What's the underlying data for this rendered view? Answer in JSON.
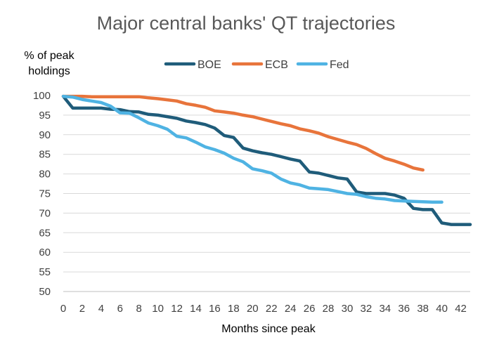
{
  "chart_data": {
    "type": "line",
    "title": "Major central banks' QT trajectories",
    "ylabel_line1": "% of peak",
    "ylabel_line2": "holdings",
    "xlabel": "Months since peak",
    "xlim": [
      0,
      43
    ],
    "ylim": [
      50,
      100
    ],
    "yticks": [
      50,
      55,
      60,
      65,
      70,
      75,
      80,
      85,
      90,
      95,
      100
    ],
    "xticks": [
      0,
      2,
      4,
      6,
      8,
      10,
      12,
      14,
      16,
      18,
      20,
      22,
      24,
      26,
      28,
      30,
      32,
      34,
      36,
      38,
      40,
      42
    ],
    "grid": "horizontal",
    "legend_position": "top",
    "series": [
      {
        "name": "BOE",
        "color": "#1f5c7a",
        "x": [
          0,
          1,
          2,
          3,
          4,
          5,
          6,
          7,
          8,
          9,
          10,
          11,
          12,
          13,
          14,
          15,
          16,
          17,
          18,
          19,
          20,
          21,
          22,
          23,
          24,
          25,
          26,
          27,
          28,
          29,
          30,
          31,
          32,
          33,
          34,
          35,
          36,
          37,
          38,
          39,
          40,
          41,
          42,
          43
        ],
        "y": [
          99.8,
          96.8,
          96.8,
          96.8,
          96.8,
          96.5,
          96.4,
          95.9,
          95.8,
          95.2,
          95.0,
          94.6,
          94.2,
          93.5,
          93.1,
          92.6,
          91.7,
          89.8,
          89.3,
          86.6,
          85.9,
          85.4,
          85.0,
          84.4,
          83.8,
          83.3,
          80.5,
          80.2,
          79.6,
          79.0,
          78.7,
          75.4,
          75.0,
          75.0,
          75.0,
          74.6,
          73.8,
          71.2,
          70.9,
          70.9,
          67.5,
          67.1,
          67.1,
          67.1
        ]
      },
      {
        "name": "ECB",
        "color": "#e8743b",
        "x": [
          0,
          1,
          2,
          3,
          4,
          5,
          6,
          7,
          8,
          9,
          10,
          11,
          12,
          13,
          14,
          15,
          16,
          17,
          18,
          19,
          20,
          21,
          22,
          23,
          24,
          25,
          26,
          27,
          28,
          29,
          30,
          31,
          32,
          33,
          34,
          35,
          36,
          37,
          38
        ],
        "y": [
          99.8,
          99.8,
          99.8,
          99.7,
          99.7,
          99.7,
          99.7,
          99.7,
          99.7,
          99.4,
          99.2,
          98.9,
          98.6,
          97.9,
          97.5,
          97.0,
          96.1,
          95.8,
          95.5,
          95.0,
          94.6,
          94.0,
          93.4,
          92.8,
          92.3,
          91.5,
          91.0,
          90.4,
          89.5,
          88.8,
          88.1,
          87.5,
          86.5,
          85.2,
          84.0,
          83.3,
          82.5,
          81.5,
          81.0
        ]
      },
      {
        "name": "Fed",
        "color": "#4fb3e3",
        "x": [
          0,
          1,
          2,
          3,
          4,
          5,
          6,
          7,
          8,
          9,
          10,
          11,
          12,
          13,
          14,
          15,
          16,
          17,
          18,
          19,
          20,
          21,
          22,
          23,
          24,
          25,
          26,
          27,
          28,
          29,
          30,
          31,
          32,
          33,
          34,
          35,
          36,
          37,
          38,
          39,
          40
        ],
        "y": [
          99.8,
          99.6,
          99.0,
          98.6,
          98.2,
          97.3,
          95.6,
          95.5,
          94.3,
          93.0,
          92.3,
          91.4,
          89.6,
          89.2,
          88.1,
          86.9,
          86.2,
          85.3,
          84.0,
          83.1,
          81.3,
          80.8,
          80.2,
          78.7,
          77.7,
          77.2,
          76.4,
          76.2,
          76.0,
          75.5,
          75.0,
          74.8,
          74.2,
          73.8,
          73.6,
          73.2,
          73.1,
          73.0,
          72.9,
          72.8,
          72.8
        ]
      }
    ]
  }
}
